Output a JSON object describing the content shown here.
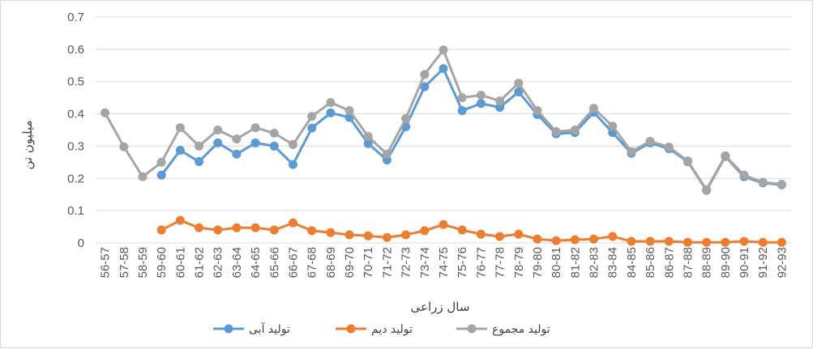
{
  "chart_data": {
    "type": "line",
    "xlabel": "سال زراعی",
    "ylabel": "میلیون تن",
    "ylim": [
      0,
      0.7
    ],
    "yticks": [
      "0",
      "0.1",
      "0.2",
      "0.3",
      "0.4",
      "0.5",
      "0.6",
      "0.7"
    ],
    "grid": true,
    "legend_position": "bottom",
    "categories": [
      "56-57",
      "57-58",
      "58-59",
      "59-60",
      "60-61",
      "61-62",
      "62-63",
      "63-64",
      "64-65",
      "65-66",
      "66-67",
      "67-68",
      "68-69",
      "69-70",
      "70-71",
      "71-72",
      "72-73",
      "73-74",
      "74-75",
      "75-76",
      "76-77",
      "77-78",
      "78-79",
      "79-80",
      "80-81",
      "81-82",
      "82-83",
      "83-84",
      "84-85",
      "85-86",
      "86-87",
      "87-88",
      "88-89",
      "89-90",
      "90-91",
      "91-92",
      "92-93"
    ],
    "series": [
      {
        "name": "تولید آبی",
        "color": "#5b9bd5",
        "values": [
          null,
          null,
          null,
          0.21,
          0.287,
          0.252,
          0.31,
          0.275,
          0.31,
          0.3,
          0.243,
          0.356,
          0.403,
          0.389,
          0.308,
          0.257,
          0.36,
          0.484,
          0.54,
          0.41,
          0.432,
          0.42,
          0.468,
          0.398,
          0.338,
          0.342,
          0.405,
          0.342,
          0.278,
          0.31,
          0.292,
          0.252,
          0.163,
          0.268,
          0.205,
          0.186,
          0.18
        ]
      },
      {
        "name": "تولید دیم",
        "color": "#ed7d31",
        "values": [
          null,
          null,
          null,
          0.04,
          0.07,
          0.047,
          0.04,
          0.047,
          0.047,
          0.04,
          0.062,
          0.038,
          0.032,
          0.025,
          0.022,
          0.017,
          0.025,
          0.038,
          0.057,
          0.04,
          0.027,
          0.02,
          0.027,
          0.012,
          0.007,
          0.01,
          0.012,
          0.02,
          0.005,
          0.005,
          0.005,
          0.002,
          0.002,
          0.002,
          0.005,
          0.002,
          0.002
        ]
      },
      {
        "name": "تولید مجموع",
        "color": "#a5a5a5",
        "values": [
          0.403,
          0.298,
          0.205,
          0.25,
          0.357,
          0.3,
          0.35,
          0.322,
          0.357,
          0.34,
          0.305,
          0.392,
          0.435,
          0.41,
          0.33,
          0.275,
          0.385,
          0.522,
          0.598,
          0.45,
          0.458,
          0.44,
          0.495,
          0.41,
          0.345,
          0.35,
          0.417,
          0.362,
          0.283,
          0.315,
          0.297,
          0.254,
          0.165,
          0.27,
          0.21,
          0.188,
          0.182
        ]
      }
    ]
  }
}
